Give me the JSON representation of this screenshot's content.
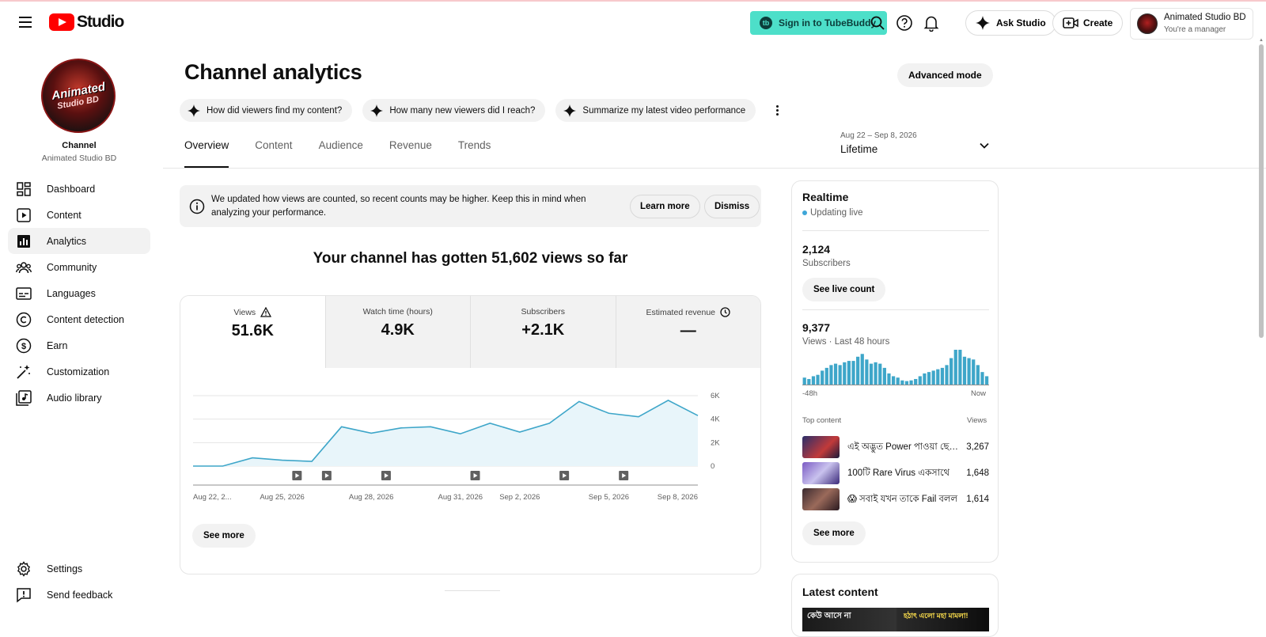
{
  "header": {
    "brand": "Studio",
    "tubebuddy_label": "Sign in to TubeBuddy",
    "tubebuddy_icon": "tb",
    "ask_studio_label": "Ask Studio",
    "create_label": "Create",
    "account_name": "Animated Studio BD",
    "account_role": "You're a manager"
  },
  "sidebar": {
    "avatar_line1": "Animated",
    "avatar_line2": "Studio BD",
    "channel_label": "Channel",
    "channel_name": "Animated Studio BD",
    "items": [
      {
        "label": "Dashboard",
        "icon": "dashboard-icon"
      },
      {
        "label": "Content",
        "icon": "content-icon"
      },
      {
        "label": "Analytics",
        "icon": "analytics-icon",
        "active": true
      },
      {
        "label": "Community",
        "icon": "community-icon"
      },
      {
        "label": "Languages",
        "icon": "languages-icon"
      },
      {
        "label": "Content detection",
        "icon": "copyright-icon"
      },
      {
        "label": "Earn",
        "icon": "earn-icon"
      },
      {
        "label": "Customization",
        "icon": "customization-icon"
      },
      {
        "label": "Audio library",
        "icon": "audio-library-icon"
      }
    ],
    "bottom": [
      {
        "label": "Settings",
        "icon": "gear-icon"
      },
      {
        "label": "Send feedback",
        "icon": "feedback-icon"
      }
    ]
  },
  "main": {
    "title": "Channel analytics",
    "advanced_mode_label": "Advanced mode",
    "chips": [
      "How did viewers find my content?",
      "How many new viewers did I reach?",
      "Summarize my latest video performance"
    ],
    "tabs": [
      "Overview",
      "Content",
      "Audience",
      "Revenue",
      "Trends"
    ],
    "active_tab": "Overview",
    "date_range": {
      "dates": "Aug 22 – Sep 8, 2026",
      "value": "Lifetime"
    },
    "notice": {
      "text": "We updated how views are counted, so recent counts may be higher. Keep this in mind when analyzing your performance.",
      "learn_more": "Learn more",
      "dismiss": "Dismiss"
    },
    "headline": "Your channel has gotten 51,602 views so far",
    "metrics": [
      {
        "label": "Views",
        "value": "51.6K",
        "badge_icon": "warning-icon",
        "active": true
      },
      {
        "label": "Watch time (hours)",
        "value": "4.9K"
      },
      {
        "label": "Subscribers",
        "value": "+2.1K"
      },
      {
        "label": "Estimated revenue",
        "value": "—",
        "badge_icon": "clock-icon"
      }
    ],
    "see_more_label": "See more"
  },
  "chart_data": {
    "type": "area",
    "x_tick_labels": [
      "Aug 22, 2...",
      "Aug 25, 2026",
      "Aug 28, 2026",
      "Aug 31, 2026",
      "Sep 2, 2026",
      "Sep 5, 2026",
      "Sep 8, 2026"
    ],
    "y_tick_labels": [
      "6K",
      "4K",
      "2K",
      "0"
    ],
    "ylim": [
      0,
      6000
    ],
    "x": [
      "Aug 22",
      "Aug 23",
      "Aug 24",
      "Aug 25",
      "Aug 26",
      "Aug 27",
      "Aug 28",
      "Aug 29",
      "Aug 30",
      "Aug 31",
      "Sep 1",
      "Sep 2",
      "Sep 3",
      "Sep 4",
      "Sep 5",
      "Sep 6",
      "Sep 7",
      "Sep 8"
    ],
    "series": [
      {
        "values": [
          0,
          0,
          700,
          500,
          400,
          3350,
          2800,
          3250,
          3350,
          2750,
          3650,
          2900,
          3650,
          5500,
          4500,
          4200,
          5600,
          4300
        ]
      }
    ],
    "video_markers": [
      "Aug 26",
      "Aug 27",
      "Aug 29",
      "Sep 1",
      "Sep 4",
      "Sep 6"
    ],
    "line_color": "#3ea6c9",
    "fill_color": "#e8f5fa"
  },
  "realtime": {
    "title": "Realtime",
    "status": "Updating live",
    "subscribers_value": "2,124",
    "subscribers_label": "Subscribers",
    "live_count_label": "See live count",
    "views_value": "9,377",
    "views_label": "Views · Last 48 hours",
    "axis_start": "-48h",
    "axis_end": "Now",
    "hourly_views": [
      10,
      8,
      12,
      14,
      20,
      24,
      28,
      30,
      28,
      32,
      34,
      34,
      40,
      44,
      36,
      30,
      32,
      30,
      24,
      16,
      12,
      10,
      6,
      5,
      6,
      8,
      12,
      16,
      18,
      20,
      22,
      24,
      28,
      38,
      50,
      50,
      40,
      38,
      36,
      28,
      18,
      12
    ],
    "bar_color": "#3ea6c9",
    "top_content_label": "Top content",
    "top_content_views_label": "Views",
    "top_content": [
      {
        "title": "এই অদ্ভুত Power পাওয়া ছেলেটা",
        "views": "3,267",
        "thumb": "#3a3f7a"
      },
      {
        "title": "100টি Rare Virus একসাথে",
        "views": "1,648",
        "thumb": "#6b4fa8"
      },
      {
        "title": "😱 সবাই যখন তাকে Fail বলল",
        "views": "1,614",
        "thumb": "#4a2f3a"
      }
    ],
    "see_more_label": "See more"
  },
  "latest": {
    "title": "Latest content",
    "thumb_text_left": "কেউ আসে না",
    "thumb_text_right": "হঠাৎ এলো মহা মামলা!"
  }
}
